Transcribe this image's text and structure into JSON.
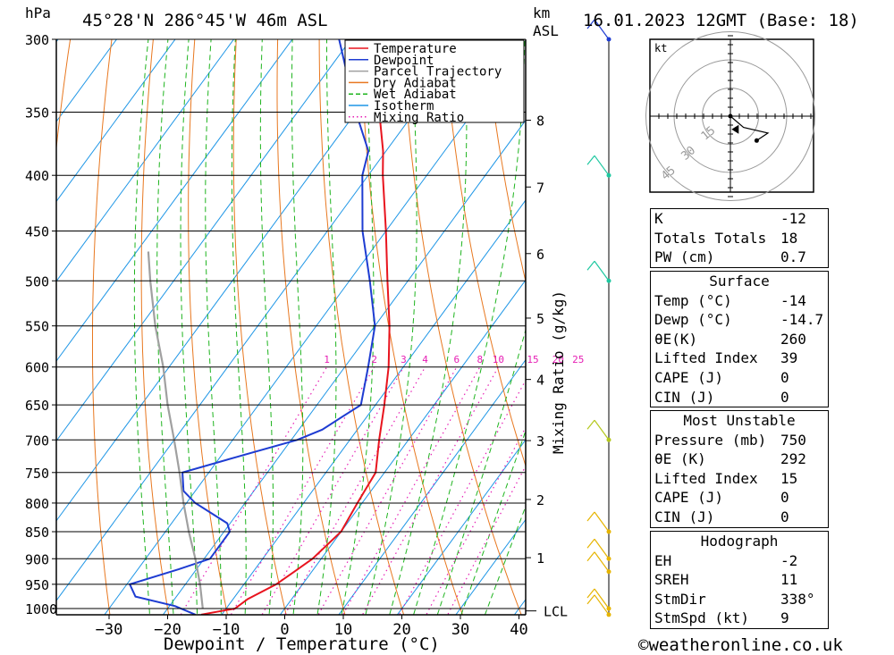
{
  "header": {
    "pressure_unit": "hPa",
    "location": "45°28'N  286°45'W  46m  ASL",
    "km_label": "km",
    "asl_label": "ASL",
    "datetime": "16.01.2023  12GMT  (Base: 18)"
  },
  "footer": {
    "credit": "©weatheronline.co.uk"
  },
  "chart_data": {
    "type": "line",
    "subtype": "skew-T log-P diagram",
    "xlabel": "Dewpoint / Temperature (°C)",
    "ylabel": "hPa",
    "right_label": "Mixing Ratio (g/kg)",
    "x_ticks": [
      -30,
      -20,
      -10,
      0,
      10,
      20,
      30,
      40
    ],
    "pressure_levels": [
      300,
      350,
      400,
      450,
      500,
      550,
      600,
      650,
      700,
      750,
      800,
      850,
      900,
      950,
      1000
    ],
    "km_ticks": [
      {
        "km": "8",
        "p": 356
      },
      {
        "km": "7",
        "p": 410
      },
      {
        "km": "6",
        "p": 472
      },
      {
        "km": "5",
        "p": 541
      },
      {
        "km": "4",
        "p": 616
      },
      {
        "km": "3",
        "p": 701
      },
      {
        "km": "2",
        "p": 794
      },
      {
        "km": "1",
        "p": 898
      }
    ],
    "lcl": {
      "label": "LCL",
      "p": 1005
    },
    "mixing_ratio_labels": [
      "1",
      "2",
      "3",
      "4",
      "6",
      "8",
      "10",
      "15",
      "20",
      "25"
    ],
    "legend": [
      {
        "name": "Temperature",
        "color": "#e8141e",
        "style": "solid"
      },
      {
        "name": "Dewpoint",
        "color": "#1e3cd2",
        "style": "solid"
      },
      {
        "name": "Parcel Trajectory",
        "color": "#a0a0a0",
        "style": "solid"
      },
      {
        "name": "Dry Adiabat",
        "color": "#e87820",
        "style": "solid"
      },
      {
        "name": "Wet Adiabat",
        "color": "#1eb41e",
        "style": "dashed"
      },
      {
        "name": "Isotherm",
        "color": "#1e96e6",
        "style": "solid"
      },
      {
        "name": "Mixing Ratio",
        "color": "#e61eb4",
        "style": "dotted"
      }
    ],
    "series": [
      {
        "name": "Temperature",
        "color": "#e8141e",
        "points": [
          [
            1013,
            -13.5
          ],
          [
            1000,
            -8.5
          ],
          [
            980,
            -7.5
          ],
          [
            950,
            -4.5
          ],
          [
            925,
            -3.0
          ],
          [
            900,
            -1.5
          ],
          [
            850,
            0.0
          ],
          [
            800,
            -0.8
          ],
          [
            750,
            -1.5
          ],
          [
            700,
            -5.0
          ],
          [
            650,
            -8.5
          ],
          [
            600,
            -12.5
          ],
          [
            550,
            -17.5
          ],
          [
            500,
            -23.5
          ],
          [
            450,
            -30.0
          ],
          [
            400,
            -37.5
          ],
          [
            380,
            -40.5
          ],
          [
            350,
            -46.0
          ],
          [
            300,
            -53.5
          ]
        ]
      },
      {
        "name": "Dewpoint",
        "color": "#1e3cd2",
        "points": [
          [
            1013,
            -14.5
          ],
          [
            995,
            -19.0
          ],
          [
            975,
            -27.0
          ],
          [
            950,
            -29.5
          ],
          [
            920,
            -23.0
          ],
          [
            900,
            -19.0
          ],
          [
            850,
            -19.0
          ],
          [
            835,
            -20.5
          ],
          [
            800,
            -28.5
          ],
          [
            780,
            -32.0
          ],
          [
            750,
            -34.5
          ],
          [
            725,
            -27.0
          ],
          [
            700,
            -19.0
          ],
          [
            685,
            -16.0
          ],
          [
            650,
            -12.5
          ],
          [
            600,
            -16.0
          ],
          [
            550,
            -20.0
          ],
          [
            500,
            -26.5
          ],
          [
            450,
            -34.0
          ],
          [
            400,
            -41.0
          ],
          [
            380,
            -43.0
          ],
          [
            350,
            -50.0
          ],
          [
            300,
            -62.0
          ]
        ]
      },
      {
        "name": "Parcel Trajectory",
        "color": "#a0a0a0",
        "points": [
          [
            1000,
            -14.0
          ],
          [
            950,
            -17.5
          ],
          [
            900,
            -21.5
          ],
          [
            850,
            -26.0
          ],
          [
            800,
            -30.5
          ],
          [
            750,
            -35.0
          ],
          [
            700,
            -40.0
          ],
          [
            650,
            -45.5
          ],
          [
            600,
            -51.0
          ],
          [
            550,
            -57.5
          ],
          [
            500,
            -64.0
          ],
          [
            470,
            -68.0
          ]
        ]
      }
    ],
    "wind_barbs": [
      {
        "p": 300,
        "color": "#1e3cd2"
      },
      {
        "p": 400,
        "color": "#1ec8a0"
      },
      {
        "p": 500,
        "color": "#1ec8a0"
      },
      {
        "p": 700,
        "color": "#b4c81e"
      },
      {
        "p": 850,
        "color": "#e6b400"
      },
      {
        "p": 900,
        "color": "#e6b400"
      },
      {
        "p": 925,
        "color": "#e6b400"
      },
      {
        "p": 1000,
        "color": "#e6b400"
      },
      {
        "p": 1013,
        "color": "#e6b400"
      }
    ],
    "hodograph": {
      "unit_label": "kt",
      "ring_labels": [
        "15",
        "30",
        "45"
      ],
      "trace": [
        [
          0,
          0
        ],
        [
          7,
          -6
        ],
        [
          20,
          -9
        ],
        [
          14,
          -13
        ]
      ],
      "storm_motion": [
        3,
        -7
      ]
    }
  },
  "indices": {
    "rows": [
      {
        "label": "K",
        "value": "-12"
      },
      {
        "label": "Totals Totals",
        "value": "18"
      },
      {
        "label": "PW (cm)",
        "value": "0.7"
      }
    ]
  },
  "surface": {
    "title": "Surface",
    "rows": [
      {
        "label": "Temp (°C)",
        "value": "-14"
      },
      {
        "label": "Dewp (°C)",
        "value": "-14.7"
      },
      {
        "label": "θE(K)",
        "value": "260"
      },
      {
        "label": "Lifted Index",
        "value": "39"
      },
      {
        "label": "CAPE (J)",
        "value": "0"
      },
      {
        "label": "CIN (J)",
        "value": "0"
      }
    ]
  },
  "most_unstable": {
    "title": "Most Unstable",
    "rows": [
      {
        "label": "Pressure (mb)",
        "value": "750"
      },
      {
        "label": "θE (K)",
        "value": "292"
      },
      {
        "label": "Lifted Index",
        "value": "15"
      },
      {
        "label": "CAPE (J)",
        "value": "0"
      },
      {
        "label": "CIN (J)",
        "value": "0"
      }
    ]
  },
  "hodograph_table": {
    "title": "Hodograph",
    "rows": [
      {
        "label": "EH",
        "value": "-2"
      },
      {
        "label": "SREH",
        "value": "11"
      },
      {
        "label": "StmDir",
        "value": "338°"
      },
      {
        "label": "StmSpd (kt)",
        "value": "9"
      }
    ]
  }
}
